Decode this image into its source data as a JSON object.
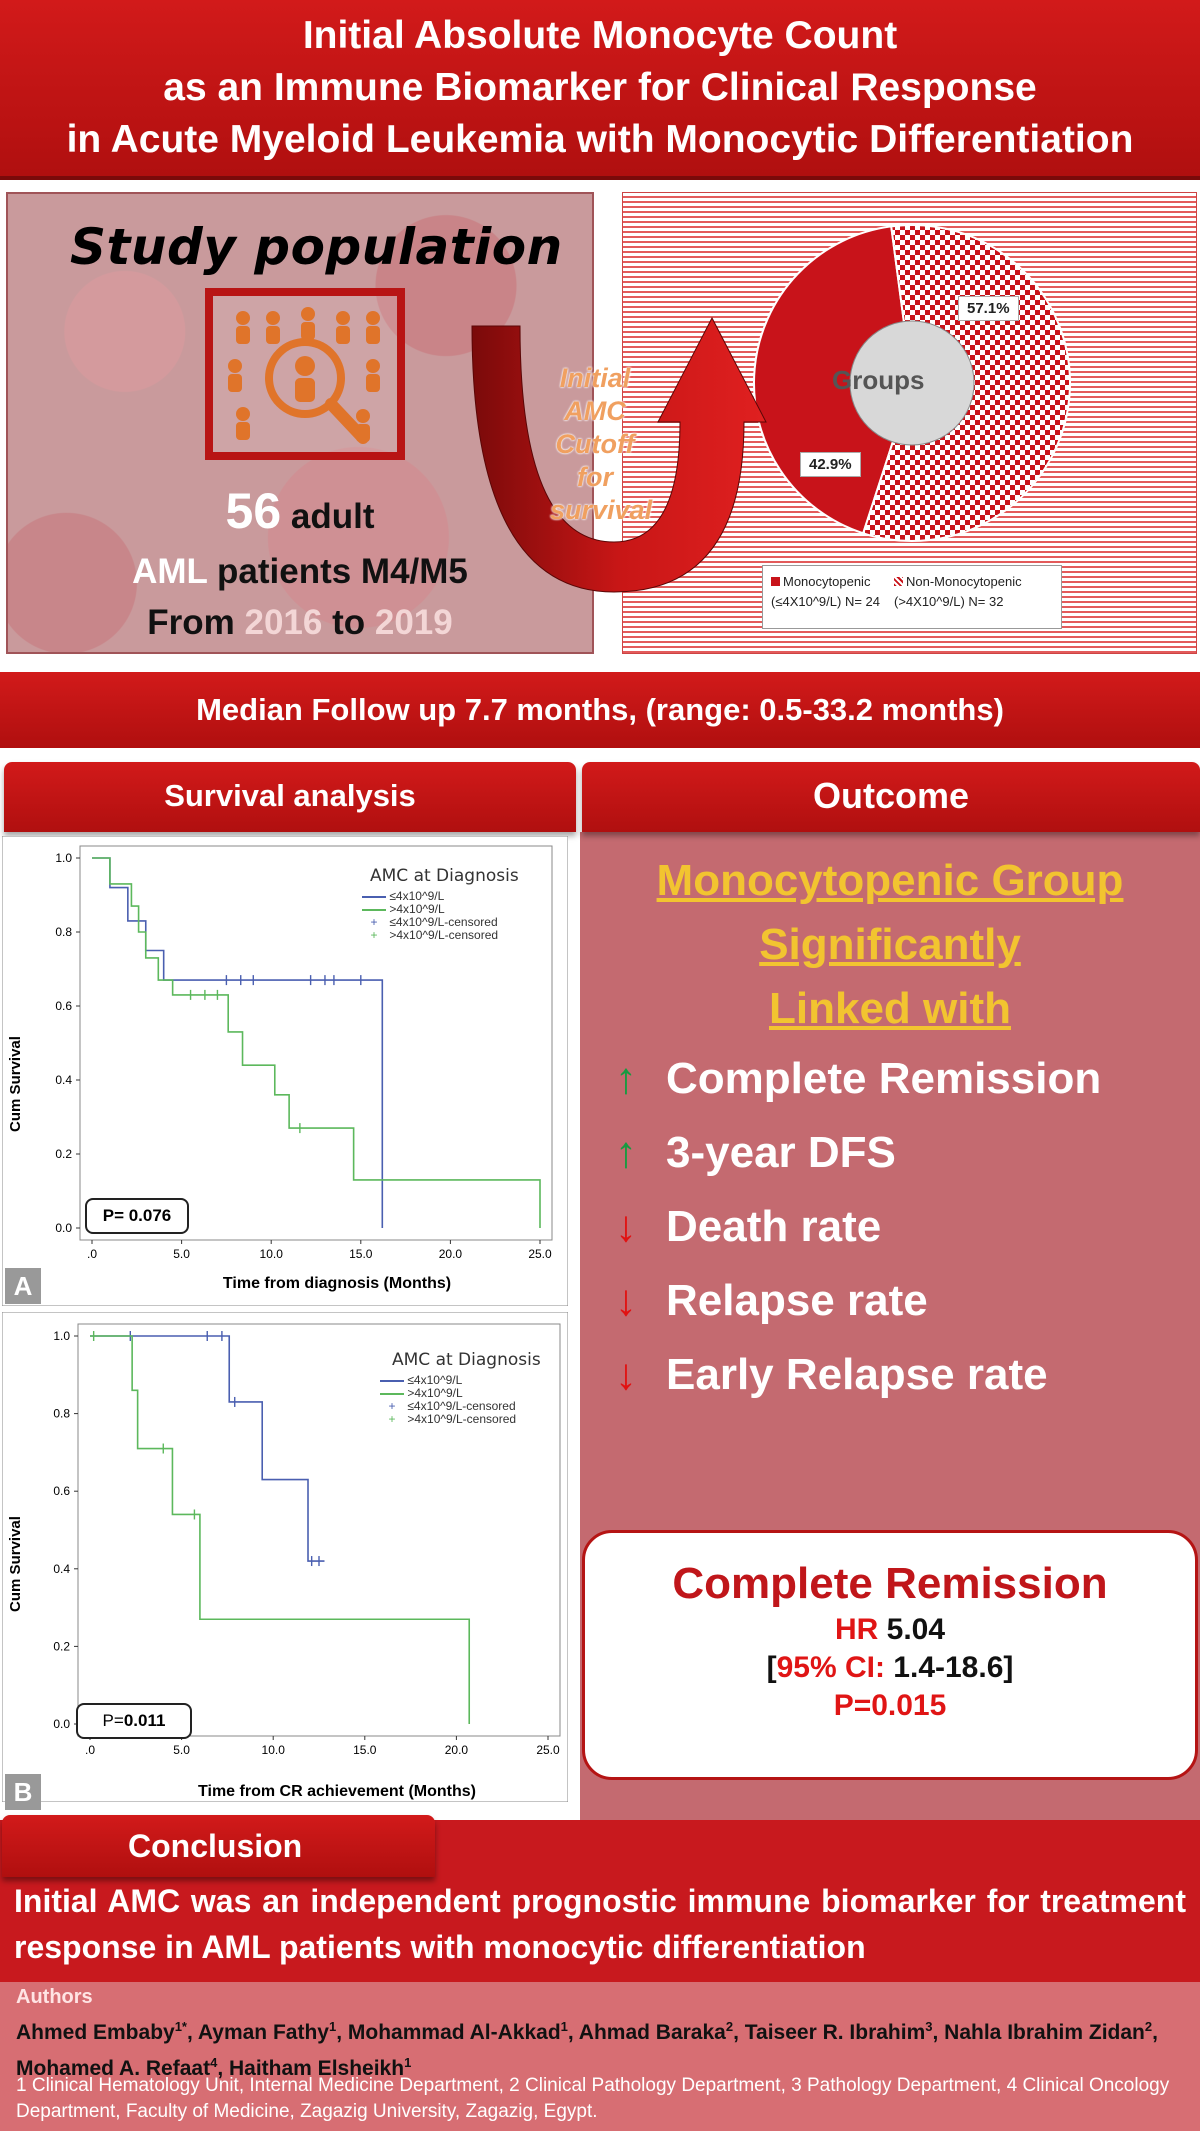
{
  "title": {
    "line1": "Initial Absolute Monocyte Count",
    "line2": "as an Immune Biomarker for Clinical Response",
    "line3": "in Acute Myeloid Leukemia with Monocytic Differentiation"
  },
  "study": {
    "heading": "Study population",
    "count": "56",
    "count_suffix": " adult",
    "line2_a": "AML",
    "line2_b": " patients M4/M5",
    "line3_a": "From ",
    "line3_b": "2016",
    "line3_c": " to ",
    "line3_d": "2019",
    "arrow_text": [
      "Initial",
      "AMC",
      "Cutoff",
      "for",
      "survival"
    ]
  },
  "pie": {
    "center_label": "Groups",
    "label_large": "57.1%",
    "label_small": "42.9%",
    "legend": [
      {
        "line1": "Monocytopenic",
        "line2": "(≤4X10^9/L) N= 24"
      },
      {
        "line1": "Non-Monocytopenic",
        "line2": "(>4X10^9/L) N= 32"
      }
    ],
    "colors": {
      "monocytopenic": "#c8131a",
      "non_monocytopenic": "#c8131a"
    }
  },
  "median_followup": "Median Follow up 7.7 months, (range: 0.5-33.2 months)",
  "survival": {
    "header": "Survival analysis",
    "charts": [
      {
        "tag": "A",
        "legend_title": "AMC at Diagnosis",
        "legend_items": [
          "≤4x10^9/L",
          ">4x10^9/L",
          "≤4x10^9/L-censored",
          ">4x10^9/L-censored"
        ],
        "ylabel": "Cum Survival",
        "xlabel": "Time from diagnosis (Months)",
        "p_label": "P= 0.076",
        "yticks": [
          "0.0",
          "0.2",
          "0.4",
          "0.6",
          "0.8",
          "1.0"
        ],
        "xticks": [
          ".0",
          "5.0",
          "10.0",
          "15.0",
          "20.0",
          "25.0"
        ]
      },
      {
        "tag": "B",
        "legend_title": "AMC at Diagnosis",
        "legend_items": [
          "≤4x10^9/L",
          ">4x10^9/L",
          "≤4x10^9/L-censored",
          ">4x10^9/L-censored"
        ],
        "ylabel": "Cum Survival",
        "xlabel": "Time from CR achievement (Months)",
        "p_label_prefix": "P=",
        "p_label_value": "0.011",
        "yticks": [
          "0.0",
          "0.2",
          "0.4",
          "0.6",
          "0.8",
          "1.0"
        ],
        "xticks": [
          ".0",
          "5.0",
          "10.0",
          "15.0",
          "20.0",
          "25.0"
        ]
      }
    ]
  },
  "chart_data": [
    {
      "type": "line",
      "title": "",
      "xlabel": "Time from diagnosis (Months)",
      "ylabel": "Cum Survival",
      "xlim": [
        0,
        25
      ],
      "ylim": [
        0,
        1
      ],
      "series": [
        {
          "name": "≤4x10^9/L",
          "color": "#4a5fb0",
          "steps": [
            [
              0,
              1.0
            ],
            [
              1,
              0.92
            ],
            [
              2,
              0.83
            ],
            [
              3,
              0.75
            ],
            [
              4,
              0.67
            ],
            [
              16.2,
              0.67
            ],
            [
              16.2,
              0.0
            ]
          ],
          "censored": [
            [
              7.5,
              0.67
            ],
            [
              8.3,
              0.67
            ],
            [
              9.0,
              0.67
            ],
            [
              12.2,
              0.67
            ],
            [
              13.0,
              0.67
            ],
            [
              13.5,
              0.67
            ],
            [
              15.0,
              0.67
            ]
          ]
        },
        {
          "name": ">4x10^9/L",
          "color": "#5cb85c",
          "steps": [
            [
              0,
              1.0
            ],
            [
              1.0,
              0.93
            ],
            [
              2.2,
              0.87
            ],
            [
              2.6,
              0.8
            ],
            [
              3.0,
              0.73
            ],
            [
              3.7,
              0.67
            ],
            [
              4.5,
              0.63
            ],
            [
              7.6,
              0.53
            ],
            [
              8.4,
              0.44
            ],
            [
              10.2,
              0.36
            ],
            [
              11.0,
              0.27
            ],
            [
              14.6,
              0.13
            ],
            [
              25.0,
              0.0
            ]
          ],
          "censored": [
            [
              5.5,
              0.63
            ],
            [
              6.3,
              0.63
            ],
            [
              7.0,
              0.63
            ],
            [
              11.6,
              0.27
            ]
          ]
        }
      ]
    },
    {
      "type": "line",
      "title": "",
      "xlabel": "Time from CR achievement (Months)",
      "ylabel": "Cum Survival",
      "xlim": [
        0,
        25
      ],
      "ylim": [
        0,
        1
      ],
      "series": [
        {
          "name": "≤4x10^9/L",
          "color": "#4a5fb0",
          "steps": [
            [
              0,
              1.0
            ],
            [
              7.6,
              0.83
            ],
            [
              9.4,
              0.63
            ],
            [
              11.9,
              0.42
            ],
            [
              12.8,
              0.42
            ]
          ],
          "censored": [
            [
              2.2,
              1.0
            ],
            [
              6.4,
              1.0
            ],
            [
              7.2,
              1.0
            ],
            [
              7.9,
              0.83
            ],
            [
              12.1,
              0.42
            ],
            [
              12.5,
              0.42
            ]
          ]
        },
        {
          "name": ">4x10^9/L",
          "color": "#5cb85c",
          "steps": [
            [
              0,
              1.0
            ],
            [
              2.3,
              0.86
            ],
            [
              2.6,
              0.71
            ],
            [
              4.5,
              0.54
            ],
            [
              6.0,
              0.27
            ],
            [
              20.7,
              0.0
            ]
          ],
          "censored": [
            [
              0.2,
              1.0
            ],
            [
              4.0,
              0.71
            ],
            [
              5.7,
              0.54
            ]
          ]
        }
      ]
    },
    {
      "type": "pie",
      "title": "",
      "center_label": "Groups",
      "slices": [
        {
          "name": "Monocytopenic (≤4X10^9/L) N= 24",
          "value": 42.9
        },
        {
          "name": "Non-Monocytopenic (>4X10^9/L) N= 32",
          "value": 57.1
        }
      ]
    }
  ],
  "outcome": {
    "header": "Outcome",
    "group_line1": "Monocytopenic Group",
    "group_line2": "Significantly",
    "group_line3": "Linked with",
    "items": [
      {
        "arrow": "up",
        "label": "Complete Remission"
      },
      {
        "arrow": "up",
        "label": "3-year DFS"
      },
      {
        "arrow": "down",
        "label": "Death rate"
      },
      {
        "arrow": "down",
        "label": "Relapse rate"
      },
      {
        "arrow": "down",
        "label": "Early Relapse rate"
      }
    ],
    "cr_box": {
      "title": "Complete Remission",
      "hr_label": "HR",
      "hr_value": " 5.04",
      "ci_open": "[",
      "ci_label": "95% CI:",
      "ci_value": " 1.4-18.6]",
      "p": "P=0.015"
    }
  },
  "conclusion": {
    "header": "Conclusion",
    "text": "Initial AMC was an independent prognostic immune biomarker for treatment response in AML patients with monocytic differentiation"
  },
  "authors": {
    "heading": "Authors",
    "list": [
      {
        "name": "Ahmed Embaby",
        "sup": "1*"
      },
      {
        "name": "Ayman Fathy",
        "sup": "1"
      },
      {
        "name": "Mohammad Al-Akkad",
        "sup": "1"
      },
      {
        "name": "Ahmad Baraka",
        "sup": "2"
      },
      {
        "name": "Taiseer R. Ibrahim",
        "sup": "3"
      },
      {
        "name": "Nahla Ibrahim Zidan",
        "sup": "2"
      },
      {
        "name": "Mohamed A. Refaat",
        "sup": "4"
      },
      {
        "name": "Haitham Elsheikh",
        "sup": "1"
      }
    ],
    "affiliations": "1 Clinical Hematology Unit, Internal Medicine Department, 2 Clinical Pathology Department, 3 Pathology Department, 4 Clinical Oncology Department, Faculty of Medicine, Zagazig University, Zagazig, Egypt."
  }
}
